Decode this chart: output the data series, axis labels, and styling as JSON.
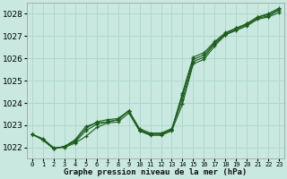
{
  "title": "Graphe pression niveau de la mer (hPa)",
  "background_color": "#c8e8e0",
  "grid_color": "#b0d8cc",
  "line_color": "#1a5c1a",
  "x_labels": [
    "0",
    "1",
    "2",
    "3",
    "4",
    "5",
    "6",
    "7",
    "8",
    "9",
    "10",
    "11",
    "12",
    "13",
    "14",
    "15",
    "16",
    "17",
    "18",
    "19",
    "20",
    "21",
    "22",
    "23"
  ],
  "ylim": [
    1021.5,
    1028.5
  ],
  "yticks": [
    1022,
    1023,
    1024,
    1025,
    1026,
    1027,
    1028
  ],
  "series": [
    [
      1022.6,
      1022.4,
      1022.0,
      1022.0,
      1022.2,
      1022.5,
      1022.9,
      1023.1,
      1023.15,
      1023.55,
      1022.75,
      1022.55,
      1022.55,
      1022.75,
      1023.95,
      1025.75,
      1025.95,
      1026.55,
      1027.05,
      1027.25,
      1027.45,
      1027.75,
      1027.85,
      1028.05
    ],
    [
      1022.6,
      1022.35,
      1021.95,
      1022.05,
      1022.25,
      1022.75,
      1023.05,
      1023.15,
      1023.25,
      1023.65,
      1022.85,
      1022.65,
      1022.65,
      1022.85,
      1024.15,
      1025.85,
      1026.05,
      1026.65,
      1027.05,
      1027.3,
      1027.5,
      1027.8,
      1027.9,
      1028.15
    ],
    [
      1022.6,
      1022.35,
      1021.95,
      1022.05,
      1022.3,
      1022.85,
      1023.15,
      1023.25,
      1023.3,
      1023.65,
      1022.8,
      1022.6,
      1022.6,
      1022.8,
      1024.35,
      1025.95,
      1026.15,
      1026.7,
      1027.1,
      1027.35,
      1027.55,
      1027.85,
      1027.95,
      1028.2
    ],
    [
      1022.6,
      1022.35,
      1021.95,
      1022.05,
      1022.35,
      1022.95,
      1023.1,
      1023.15,
      1023.25,
      1023.65,
      1022.75,
      1022.6,
      1022.6,
      1022.8,
      1024.45,
      1026.05,
      1026.25,
      1026.75,
      1027.15,
      1027.35,
      1027.55,
      1027.85,
      1028.0,
      1028.25
    ]
  ]
}
